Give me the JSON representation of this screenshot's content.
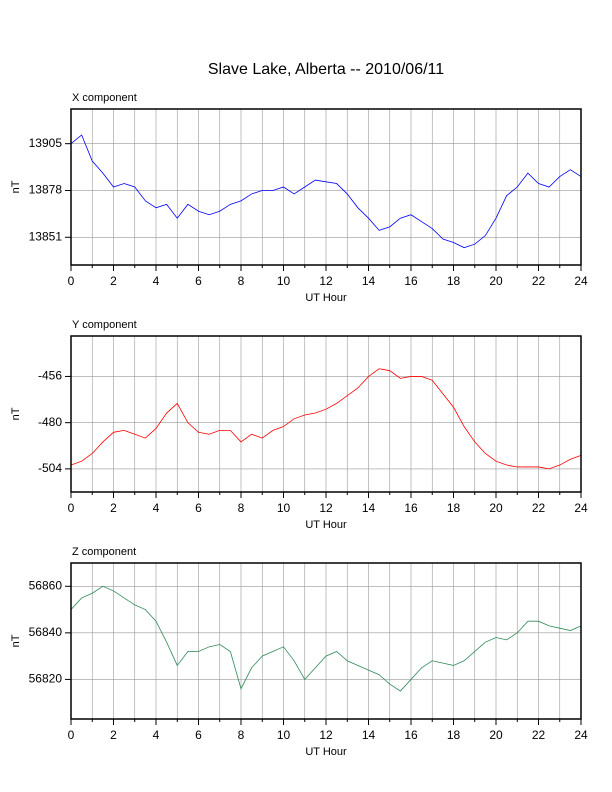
{
  "title": "Slave Lake, Alberta -- 2010/06/11",
  "chart_data": [
    {
      "type": "line",
      "title": "X component",
      "xlabel": "UT Hour",
      "ylabel": "nT",
      "color": "#0000ff",
      "x": [
        0,
        0.5,
        1,
        1.5,
        2,
        2.5,
        3,
        3.5,
        4,
        4.5,
        5,
        5.5,
        6,
        6.5,
        7,
        7.5,
        8,
        8.5,
        9,
        9.5,
        10,
        10.5,
        11,
        11.5,
        12,
        12.5,
        13,
        13.5,
        14,
        14.5,
        15,
        15.5,
        16,
        16.5,
        17,
        17.5,
        18,
        18.5,
        19,
        19.5,
        20,
        20.5,
        21,
        21.5,
        22,
        22.5,
        23,
        23.5,
        24
      ],
      "values": [
        13905,
        13910,
        13895,
        13888,
        13880,
        13882,
        13880,
        13872,
        13868,
        13870,
        13862,
        13870,
        13866,
        13864,
        13866,
        13870,
        13872,
        13876,
        13878,
        13878,
        13880,
        13876,
        13880,
        13884,
        13883,
        13882,
        13876,
        13868,
        13862,
        13855,
        13857,
        13862,
        13864,
        13860,
        13856,
        13850,
        13848,
        13845,
        13847,
        13852,
        13862,
        13875,
        13880,
        13888,
        13882,
        13880,
        13886,
        13890,
        13886
      ],
      "xlim": [
        0,
        24
      ],
      "ylim": [
        13835,
        13925
      ],
      "xticks": [
        0,
        2,
        4,
        6,
        8,
        10,
        12,
        14,
        16,
        18,
        20,
        22,
        24
      ],
      "minor_xticks": [
        1,
        3,
        5,
        7,
        9,
        11,
        13,
        15,
        17,
        19,
        21,
        23
      ],
      "yticks": [
        13851,
        13878,
        13905
      ],
      "grid": true
    },
    {
      "type": "line",
      "title": "Y component",
      "xlabel": "UT Hour",
      "ylabel": "nT",
      "color": "#ff0000",
      "x": [
        0,
        0.5,
        1,
        1.5,
        2,
        2.5,
        3,
        3.5,
        4,
        4.5,
        5,
        5.5,
        6,
        6.5,
        7,
        7.5,
        8,
        8.5,
        9,
        9.5,
        10,
        10.5,
        11,
        11.5,
        12,
        12.5,
        13,
        13.5,
        14,
        14.5,
        15,
        15.5,
        16,
        16.5,
        17,
        17.5,
        18,
        18.5,
        19,
        19.5,
        20,
        20.5,
        21,
        21.5,
        22,
        22.5,
        23,
        23.5,
        24
      ],
      "values": [
        -502,
        -500,
        -496,
        -490,
        -485,
        -484,
        -486,
        -488,
        -483,
        -475,
        -470,
        -480,
        -485,
        -486,
        -484,
        -484,
        -490,
        -486,
        -488,
        -484,
        -482,
        -478,
        -476,
        -475,
        -473,
        -470,
        -466,
        -462,
        -456,
        -452,
        -453,
        -457,
        -456,
        -456,
        -458,
        -465,
        -472,
        -482,
        -490,
        -496,
        -500,
        -502,
        -503,
        -503,
        -503,
        -504,
        -502,
        -499,
        -497
      ],
      "xlim": [
        0,
        24
      ],
      "ylim": [
        -516,
        -435
      ],
      "xticks": [
        0,
        2,
        4,
        6,
        8,
        10,
        12,
        14,
        16,
        18,
        20,
        22,
        24
      ],
      "minor_xticks": [
        1,
        3,
        5,
        7,
        9,
        11,
        13,
        15,
        17,
        19,
        21,
        23
      ],
      "yticks": [
        -504,
        -480,
        -456
      ],
      "grid": true
    },
    {
      "type": "line",
      "title": "Z component",
      "xlabel": "UT Hour",
      "ylabel": "nT",
      "color": "#2e8b57",
      "x": [
        0,
        0.5,
        1,
        1.5,
        2,
        2.5,
        3,
        3.5,
        4,
        4.5,
        5,
        5.5,
        6,
        6.5,
        7,
        7.5,
        8,
        8.5,
        9,
        9.5,
        10,
        10.5,
        11,
        11.5,
        12,
        12.5,
        13,
        13.5,
        14,
        14.5,
        15,
        15.5,
        16,
        16.5,
        17,
        17.5,
        18,
        18.5,
        19,
        19.5,
        20,
        20.5,
        21,
        21.5,
        22,
        22.5,
        23,
        23.5,
        24
      ],
      "values": [
        56850,
        56855,
        56857,
        56860,
        56858,
        56855,
        56852,
        56850,
        56845,
        56836,
        56826,
        56832,
        56832,
        56834,
        56835,
        56832,
        56816,
        56825,
        56830,
        56832,
        56834,
        56828,
        56820,
        56825,
        56830,
        56832,
        56828,
        56826,
        56824,
        56822,
        56818,
        56815,
        56820,
        56825,
        56828,
        56827,
        56826,
        56828,
        56832,
        56836,
        56838,
        56837,
        56840,
        56845,
        56845,
        56843,
        56842,
        56841,
        56843
      ],
      "xlim": [
        0,
        24
      ],
      "ylim": [
        56803,
        56870
      ],
      "xticks": [
        0,
        2,
        4,
        6,
        8,
        10,
        12,
        14,
        16,
        18,
        20,
        22,
        24
      ],
      "minor_xticks": [
        1,
        3,
        5,
        7,
        9,
        11,
        13,
        15,
        17,
        19,
        21,
        23
      ],
      "yticks": [
        56820,
        56840,
        56860
      ],
      "grid": true
    }
  ]
}
